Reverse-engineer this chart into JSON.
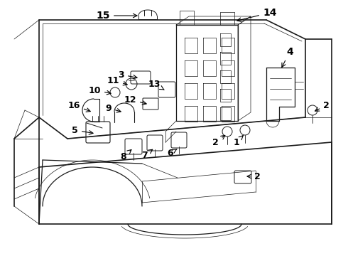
{
  "bg_color": "#ffffff",
  "line_color": "#1a1a1a",
  "lw_main": 0.9,
  "lw_thin": 0.5,
  "lw_thick": 1.2,
  "figsize": [
    4.9,
    3.6
  ],
  "dpi": 100,
  "label_fontsize": 9,
  "label_fontsize_sm": 8
}
